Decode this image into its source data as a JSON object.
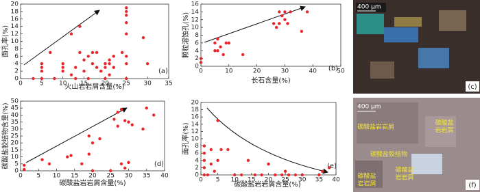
{
  "chart_data": [
    {
      "type": "scatter",
      "xlabel": "火山岩岩屑含量(%)",
      "ylabel": "面孔率(%)",
      "panel_label": "(a)",
      "color": "#e8262b",
      "xlim": [
        0,
        35
      ],
      "xticks": [
        0,
        5,
        10,
        15,
        20,
        25,
        30,
        35
      ],
      "ylim": [
        0,
        20
      ],
      "yticks": [
        0,
        2,
        4,
        6,
        8,
        10,
        12,
        14,
        16,
        18,
        20
      ],
      "x": [
        5,
        5,
        5,
        5,
        7,
        10,
        10,
        10,
        12,
        12,
        13,
        14,
        14,
        15,
        15,
        16,
        16,
        17,
        17,
        18,
        18,
        19,
        20,
        20,
        21,
        21,
        21,
        22,
        22,
        24,
        25,
        25,
        25,
        25,
        25,
        25,
        25,
        25,
        29,
        30,
        3,
        8,
        13,
        20
      ],
      "values": [
        2,
        3,
        4,
        0,
        7,
        2,
        4,
        3,
        1,
        12,
        3,
        7,
        14,
        5,
        2,
        6,
        0,
        4,
        7,
        7,
        3,
        2,
        4,
        3,
        4,
        1,
        5,
        6,
        3,
        7,
        19,
        18,
        17,
        15,
        12,
        6,
        4,
        0,
        11,
        4,
        0,
        0,
        0,
        0
      ]
    },
    {
      "type": "scatter",
      "xlabel": "长石含量(%)",
      "ylabel": "颗粒溶蚀孔(%)",
      "panel_label": "(b)",
      "color": "#e8262b",
      "xlim": [
        0,
        50
      ],
      "xticks": [
        0,
        10,
        20,
        30,
        40,
        50
      ],
      "ylim": [
        0,
        16
      ],
      "yticks": [
        0,
        2,
        4,
        6,
        8,
        10,
        12,
        14,
        16
      ],
      "x": [
        0,
        0,
        5,
        5,
        6,
        6,
        7,
        8,
        9,
        10,
        15,
        26,
        27,
        28,
        28,
        29,
        30,
        30,
        31,
        32,
        36,
        38
      ],
      "values": [
        1,
        2,
        4,
        6,
        4,
        7,
        5,
        3,
        6,
        6,
        3,
        11,
        10,
        11,
        14,
        13,
        12,
        14,
        11,
        14,
        9,
        14
      ]
    },
    {
      "type": "scatter",
      "xlabel": "碳酸盐岩岩屑含量(%)",
      "ylabel": "碳酸盐胶结物含量(%)",
      "panel_label": "(d)",
      "color": "#e8262b",
      "xlim": [
        0,
        40
      ],
      "xticks": [
        0,
        5,
        10,
        15,
        20,
        25,
        30,
        35,
        40
      ],
      "ylim": [
        0,
        50
      ],
      "yticks": [
        0,
        5,
        10,
        15,
        20,
        25,
        30,
        35,
        40,
        45,
        50
      ],
      "x": [
        1,
        1,
        6,
        8,
        13,
        14,
        17,
        19,
        19,
        20,
        22,
        26,
        27,
        27,
        28,
        28,
        29,
        29,
        30,
        30,
        31,
        34,
        35,
        37,
        20,
        25
      ],
      "values": [
        4,
        1,
        8,
        5,
        10,
        11,
        5,
        12,
        25,
        20,
        23,
        37,
        32,
        42,
        5,
        44,
        2,
        36,
        35,
        6,
        33,
        30,
        45,
        40,
        0,
        0
      ]
    },
    {
      "type": "scatter",
      "xlabel": "碳酸盐岩岩屑含量(%)",
      "ylabel": "面孔率(%)",
      "panel_label": "(e)",
      "color": "#e8262b",
      "xlim": [
        0,
        40
      ],
      "xticks": [
        0,
        5,
        10,
        15,
        20,
        25,
        30,
        35,
        40
      ],
      "ylim": [
        0,
        20
      ],
      "yticks": [
        0,
        2,
        4,
        6,
        8,
        10,
        12,
        14,
        16,
        18,
        20
      ],
      "x": [
        1,
        1,
        1,
        1,
        1,
        2,
        3,
        3,
        4,
        5,
        5,
        6,
        8,
        10,
        12,
        14,
        16,
        18,
        20,
        22,
        24,
        25,
        26,
        28,
        30,
        35,
        36,
        38
      ],
      "values": [
        2,
        4,
        6,
        8,
        0,
        0,
        7,
        3,
        1,
        15,
        4,
        7,
        7,
        0,
        0,
        4,
        0,
        0,
        3,
        0,
        0,
        1,
        0,
        0,
        0,
        0,
        1,
        2
      ]
    }
  ],
  "photos": [
    {
      "scale": "400 μm",
      "panel_label": "(c)",
      "labels": []
    },
    {
      "scale": "400 μm",
      "panel_label": "(f)",
      "labels": [
        {
          "lines": [
            "碳酸盐岩岩屑"
          ]
        },
        {
          "lines": [
            "碳酸盐",
            "岩岩屑"
          ]
        },
        {
          "lines": [
            "碳酸盐胶结物"
          ]
        },
        {
          "lines": [
            "碳酸盐",
            "岩岩屑"
          ]
        },
        {
          "lines": [
            "碳酸盐",
            "岩岩屑"
          ]
        }
      ]
    }
  ]
}
